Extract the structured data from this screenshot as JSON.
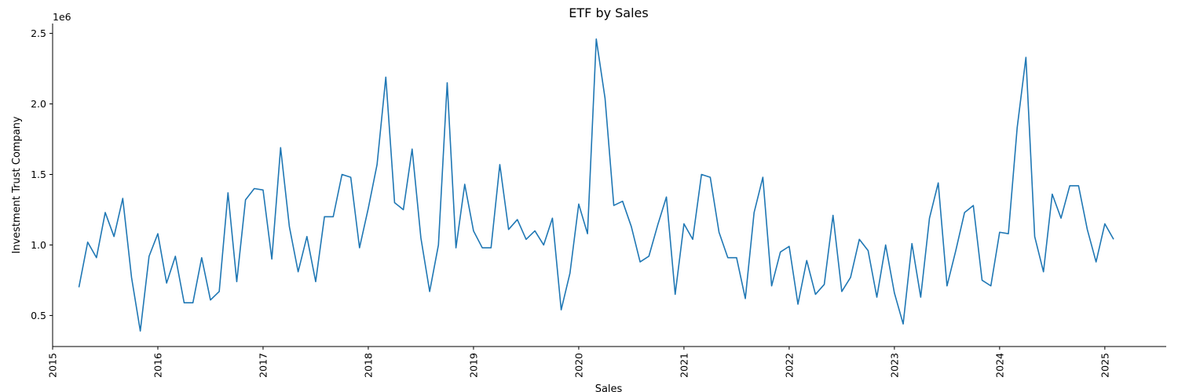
{
  "chart_data": {
    "type": "line",
    "title": "ETF by Sales",
    "xlabel": "Sales",
    "ylabel": "Investment Trust Company",
    "y_offset_label": "1e6",
    "y_scale_factor": 1000000,
    "xlim": [
      "2015-01-01",
      "2025-08-01"
    ],
    "ylim": [
      0.28,
      2.57
    ],
    "x_ticks": [
      "2015",
      "2016",
      "2017",
      "2018",
      "2019",
      "2020",
      "2021",
      "2022",
      "2023",
      "2024",
      "2025"
    ],
    "y_ticks": [
      0.5,
      1.0,
      1.5,
      2.0,
      2.5
    ],
    "y_tick_labels": [
      "0.5",
      "1.0",
      "1.5",
      "2.0",
      "2.5"
    ],
    "grid": false,
    "spines": [
      "left",
      "bottom"
    ],
    "series": [
      {
        "color": "#1f77b4",
        "x": [
          "2015-04",
          "2015-05",
          "2015-06",
          "2015-07",
          "2015-08",
          "2015-09",
          "2015-10",
          "2015-11",
          "2015-12",
          "2016-01",
          "2016-02",
          "2016-03",
          "2016-04",
          "2016-05",
          "2016-06",
          "2016-07",
          "2016-08",
          "2016-09",
          "2016-10",
          "2016-11",
          "2016-12",
          "2017-01",
          "2017-02",
          "2017-03",
          "2017-04",
          "2017-05",
          "2017-06",
          "2017-07",
          "2017-08",
          "2017-09",
          "2017-10",
          "2017-11",
          "2017-12",
          "2018-01",
          "2018-02",
          "2018-03",
          "2018-04",
          "2018-05",
          "2018-06",
          "2018-07",
          "2018-08",
          "2018-09",
          "2018-10",
          "2018-11",
          "2018-12",
          "2019-01",
          "2019-02",
          "2019-03",
          "2019-04",
          "2019-05",
          "2019-06",
          "2019-07",
          "2019-08",
          "2019-09",
          "2019-10",
          "2019-11",
          "2019-12",
          "2020-01",
          "2020-02",
          "2020-03",
          "2020-04",
          "2020-05",
          "2020-06",
          "2020-07",
          "2020-08",
          "2020-09",
          "2020-10",
          "2020-11",
          "2020-12",
          "2021-01",
          "2021-02",
          "2021-03",
          "2021-04",
          "2021-05",
          "2021-06",
          "2021-07",
          "2021-08",
          "2021-09",
          "2021-10",
          "2021-11",
          "2021-12",
          "2022-01",
          "2022-02",
          "2022-03",
          "2022-04",
          "2022-05",
          "2022-06",
          "2022-07",
          "2022-08",
          "2022-09",
          "2022-10",
          "2022-11",
          "2022-12",
          "2023-01",
          "2023-02",
          "2023-03",
          "2023-04",
          "2023-05",
          "2023-06",
          "2023-07",
          "2023-08",
          "2023-09",
          "2023-10",
          "2023-11",
          "2023-12",
          "2024-01",
          "2024-02",
          "2024-03",
          "2024-04",
          "2024-05",
          "2024-06",
          "2024-07",
          "2024-08",
          "2024-09",
          "2024-10",
          "2024-11",
          "2024-12",
          "2025-01",
          "2025-02"
        ],
        "y": [
          0.7,
          1.02,
          0.91,
          1.23,
          1.06,
          1.33,
          0.77,
          0.39,
          0.92,
          1.08,
          0.73,
          0.92,
          0.59,
          0.59,
          0.91,
          0.61,
          0.67,
          1.37,
          0.74,
          1.32,
          1.4,
          1.39,
          0.9,
          1.69,
          1.13,
          0.81,
          1.06,
          0.74,
          1.2,
          1.2,
          1.5,
          1.48,
          0.98,
          1.26,
          1.57,
          2.19,
          1.3,
          1.25,
          1.68,
          1.05,
          0.67,
          1.0,
          2.15,
          0.98,
          1.43,
          1.1,
          0.98,
          0.98,
          1.57,
          1.11,
          1.18,
          1.04,
          1.1,
          1.0,
          1.19,
          0.54,
          0.8,
          1.29,
          1.08,
          2.46,
          2.04,
          1.28,
          1.31,
          1.13,
          0.88,
          0.92,
          1.14,
          1.34,
          0.65,
          1.15,
          1.04,
          1.5,
          1.48,
          1.09,
          0.91,
          0.91,
          0.62,
          1.23,
          1.48,
          0.71,
          0.95,
          0.99,
          0.58,
          0.89,
          0.65,
          0.72,
          1.21,
          0.67,
          0.77,
          1.04,
          0.96,
          0.63,
          1.0,
          0.66,
          0.44,
          1.01,
          0.63,
          1.19,
          1.44,
          0.71,
          0.96,
          1.23,
          1.28,
          0.75,
          0.71,
          1.09,
          1.08,
          1.83,
          2.33,
          1.06,
          0.81,
          1.36,
          1.19,
          1.42,
          1.42,
          1.11,
          0.88,
          1.15,
          1.04
        ]
      }
    ]
  }
}
